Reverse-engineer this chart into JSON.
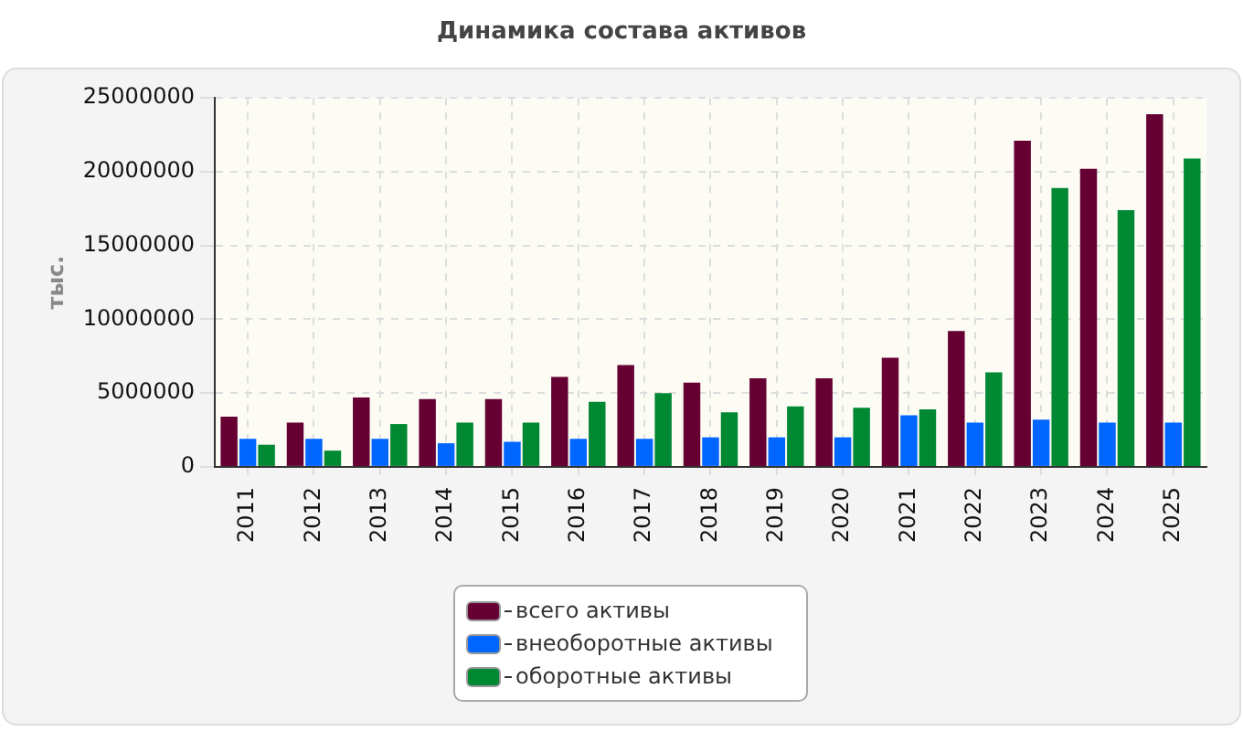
{
  "chart_data": {
    "type": "bar",
    "title": "Динамика состава активов",
    "ylabel": "тыс.",
    "categories": [
      "2011",
      "2012",
      "2013",
      "2014",
      "2015",
      "2016",
      "2017",
      "2018",
      "2019",
      "2020",
      "2021",
      "2022",
      "2023",
      "2024",
      "2025"
    ],
    "series": [
      {
        "name": "всего активы",
        "color": "#660033",
        "values": [
          3400000,
          3000000,
          4700000,
          4600000,
          4600000,
          6100000,
          6900000,
          5700000,
          6000000,
          6000000,
          7400000,
          9200000,
          22100000,
          20200000,
          23900000
        ]
      },
      {
        "name": "внеоборотные активы",
        "color": "#0066ff",
        "values": [
          1900000,
          1900000,
          1900000,
          1600000,
          1700000,
          1900000,
          1900000,
          2000000,
          2000000,
          2000000,
          3500000,
          3000000,
          3200000,
          3000000,
          3000000
        ]
      },
      {
        "name": "оборотные активы",
        "color": "#008833",
        "values": [
          1500000,
          1100000,
          2900000,
          3000000,
          3000000,
          4400000,
          5000000,
          3700000,
          4100000,
          4000000,
          3900000,
          6400000,
          18900000,
          17400000,
          20900000
        ]
      }
    ],
    "ylim": [
      0,
      25000000
    ],
    "yticks": [
      0,
      5000000,
      10000000,
      15000000,
      20000000,
      25000000
    ],
    "grid": true,
    "legend": "bottom"
  }
}
